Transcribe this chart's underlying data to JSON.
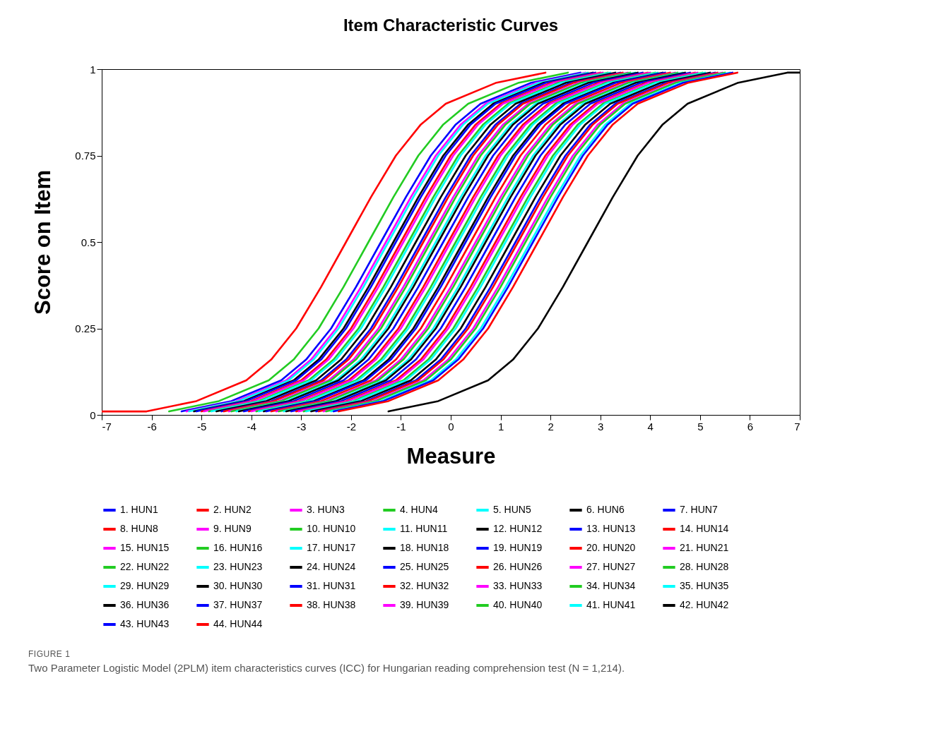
{
  "chart_data": {
    "type": "line",
    "title": "Item Characteristic Curves",
    "xlabel": "Measure",
    "ylabel": "Score on Item",
    "xlim": [
      -7,
      7
    ],
    "xticks": [
      -7,
      -6,
      -5,
      -4,
      -3,
      -2,
      -1,
      0,
      1,
      2,
      3,
      4,
      5,
      6,
      7
    ],
    "ylim": [
      0,
      1
    ],
    "yticks": [
      0,
      0.25,
      0.5,
      0.75,
      1
    ],
    "grid": false,
    "legend": "bottom",
    "marker": "none",
    "line_style": "solid",
    "annotations": [
      "FIGURE 1",
      "Two Parameter Logistic Model (2PLM) item characteristics curves (ICC) for Hungarian reading comprehension test (N = 1,214)."
    ],
    "series": [
      {
        "name": "1. HUN1",
        "color": "#0000ff",
        "x": [
          -5.4,
          -4.4,
          -3.4,
          -2.9,
          -2.4,
          -1.9,
          -1.4,
          -0.9,
          -0.4,
          0.1,
          0.6,
          1.6,
          2.6
        ],
        "values": [
          0.01,
          0.04,
          0.1,
          0.16,
          0.25,
          0.37,
          0.5,
          0.63,
          0.75,
          0.84,
          0.9,
          0.96,
          0.99
        ]
      },
      {
        "name": "2. HUN2",
        "color": "#ff0000",
        "x": [
          -7,
          -6.1,
          -5.1,
          -4.1,
          -3.6,
          -3.1,
          -2.6,
          -2.1,
          -1.6,
          -1.1,
          -0.6,
          -0.1,
          0.9,
          1.9
        ],
        "values": [
          0.01,
          0.01,
          0.04,
          0.1,
          0.16,
          0.25,
          0.37,
          0.5,
          0.63,
          0.75,
          0.84,
          0.9,
          0.96,
          0.99
        ]
      },
      {
        "name": "3. HUN3",
        "color": "#ff00ff",
        "x": [
          -5.3,
          -4.3,
          -3.3,
          -2.8,
          -2.3,
          -1.8,
          -1.3,
          -0.8,
          -0.3,
          0.2,
          0.7,
          1.7,
          2.7
        ],
        "values": [
          0.01,
          0.04,
          0.1,
          0.16,
          0.25,
          0.37,
          0.5,
          0.63,
          0.75,
          0.84,
          0.9,
          0.96,
          0.99
        ]
      },
      {
        "name": "4. HUN4",
        "color": "#22cc22",
        "x": [
          -5.65,
          -4.65,
          -3.65,
          -3.15,
          -2.65,
          -2.15,
          -1.65,
          -1.15,
          -0.65,
          -0.15,
          0.35,
          1.35,
          2.35
        ],
        "values": [
          0.01,
          0.04,
          0.1,
          0.16,
          0.25,
          0.37,
          0.5,
          0.63,
          0.75,
          0.84,
          0.9,
          0.96,
          0.99
        ]
      },
      {
        "name": "5. HUN5",
        "color": "#00ffff",
        "x": [
          -5.25,
          -4.25,
          -3.25,
          -2.75,
          -2.25,
          -1.75,
          -1.25,
          -0.75,
          -0.25,
          0.25,
          0.75,
          1.75,
          2.75
        ],
        "values": [
          0.01,
          0.04,
          0.1,
          0.16,
          0.25,
          0.37,
          0.5,
          0.63,
          0.75,
          0.84,
          0.9,
          0.96,
          0.99
        ]
      },
      {
        "name": "6. HUN6",
        "color": "#000000",
        "x": [
          -5.15,
          -4.15,
          -3.15,
          -2.65,
          -2.15,
          -1.65,
          -1.15,
          -0.65,
          -0.15,
          0.35,
          0.85,
          1.85,
          2.85
        ],
        "values": [
          0.01,
          0.04,
          0.1,
          0.16,
          0.25,
          0.37,
          0.5,
          0.63,
          0.75,
          0.84,
          0.9,
          0.96,
          0.99
        ]
      },
      {
        "name": "7. HUN7",
        "color": "#0000ff",
        "x": [
          -5.1,
          -4.1,
          -3.1,
          -2.6,
          -2.1,
          -1.6,
          -1.1,
          -0.6,
          -0.1,
          0.4,
          0.9,
          1.9,
          2.9
        ],
        "values": [
          0.01,
          0.04,
          0.1,
          0.16,
          0.25,
          0.37,
          0.5,
          0.63,
          0.75,
          0.84,
          0.9,
          0.96,
          0.99
        ]
      },
      {
        "name": "8. HUN8",
        "color": "#ff0000",
        "x": [
          -5,
          -4,
          -3,
          -2.5,
          -2,
          -1.5,
          -1,
          -0.5,
          0,
          0.5,
          1,
          2,
          3
        ],
        "values": [
          0.01,
          0.04,
          0.1,
          0.16,
          0.25,
          0.37,
          0.5,
          0.63,
          0.75,
          0.84,
          0.9,
          0.96,
          0.99
        ]
      },
      {
        "name": "9. HUN9",
        "color": "#ff00ff",
        "x": [
          -4.95,
          -3.95,
          -2.95,
          -2.45,
          -1.95,
          -1.45,
          -0.95,
          -0.45,
          0.05,
          0.55,
          1.05,
          2.05,
          3.05
        ],
        "values": [
          0.01,
          0.04,
          0.1,
          0.16,
          0.25,
          0.37,
          0.5,
          0.63,
          0.75,
          0.84,
          0.9,
          0.96,
          0.99
        ]
      },
      {
        "name": "10. HUN10",
        "color": "#22cc22",
        "x": [
          -4.85,
          -3.85,
          -2.85,
          -2.35,
          -1.85,
          -1.35,
          -0.85,
          -0.35,
          0.15,
          0.65,
          1.15,
          2.15,
          3.15
        ],
        "values": [
          0.01,
          0.04,
          0.1,
          0.16,
          0.25,
          0.37,
          0.5,
          0.63,
          0.75,
          0.84,
          0.9,
          0.96,
          0.99
        ]
      },
      {
        "name": "11. HUN11",
        "color": "#00ffff",
        "x": [
          -4.8,
          -3.8,
          -2.8,
          -2.3,
          -1.8,
          -1.3,
          -0.8,
          -0.3,
          0.2,
          0.7,
          1.2,
          2.2,
          3.2
        ],
        "values": [
          0.01,
          0.04,
          0.1,
          0.16,
          0.25,
          0.37,
          0.5,
          0.63,
          0.75,
          0.84,
          0.9,
          0.96,
          0.99
        ]
      },
      {
        "name": "12. HUN12",
        "color": "#000000",
        "x": [
          -4.7,
          -3.7,
          -2.7,
          -2.2,
          -1.7,
          -1.2,
          -0.7,
          -0.2,
          0.3,
          0.8,
          1.3,
          2.3,
          3.3
        ],
        "values": [
          0.01,
          0.04,
          0.1,
          0.16,
          0.25,
          0.37,
          0.5,
          0.63,
          0.75,
          0.84,
          0.9,
          0.96,
          0.99
        ]
      },
      {
        "name": "13. HUN13",
        "color": "#0000ff",
        "x": [
          -4.6,
          -3.6,
          -2.6,
          -2.1,
          -1.6,
          -1.1,
          -0.6,
          -0.1,
          0.4,
          0.9,
          1.4,
          2.4,
          3.4
        ],
        "values": [
          0.01,
          0.04,
          0.1,
          0.16,
          0.25,
          0.37,
          0.5,
          0.63,
          0.75,
          0.84,
          0.9,
          0.96,
          0.99
        ]
      },
      {
        "name": "14. HUN14",
        "color": "#ff0000",
        "x": [
          -4.55,
          -3.55,
          -2.55,
          -2.05,
          -1.55,
          -1.05,
          -0.55,
          -0.05,
          0.45,
          0.95,
          1.45,
          2.45,
          3.45
        ],
        "values": [
          0.01,
          0.04,
          0.1,
          0.16,
          0.25,
          0.37,
          0.5,
          0.63,
          0.75,
          0.84,
          0.9,
          0.96,
          0.99
        ]
      },
      {
        "name": "15. HUN15",
        "color": "#ff00ff",
        "x": [
          -4.45,
          -3.45,
          -2.45,
          -1.95,
          -1.45,
          -0.95,
          -0.45,
          0.05,
          0.55,
          1.05,
          1.55,
          2.55,
          3.55
        ],
        "values": [
          0.01,
          0.04,
          0.1,
          0.16,
          0.25,
          0.37,
          0.5,
          0.63,
          0.75,
          0.84,
          0.9,
          0.96,
          0.99
        ]
      },
      {
        "name": "16. HUN16",
        "color": "#22cc22",
        "x": [
          -4.4,
          -3.4,
          -2.4,
          -1.9,
          -1.4,
          -0.9,
          -0.4,
          0.1,
          0.6,
          1.1,
          1.6,
          2.6,
          3.6
        ],
        "values": [
          0.01,
          0.04,
          0.1,
          0.16,
          0.25,
          0.37,
          0.5,
          0.63,
          0.75,
          0.84,
          0.9,
          0.96,
          0.99
        ]
      },
      {
        "name": "17. HUN17",
        "color": "#00ffff",
        "x": [
          -4.3,
          -3.3,
          -2.3,
          -1.8,
          -1.3,
          -0.8,
          -0.3,
          0.2,
          0.7,
          1.2,
          1.7,
          2.7,
          3.7
        ],
        "values": [
          0.01,
          0.04,
          0.1,
          0.16,
          0.25,
          0.37,
          0.5,
          0.63,
          0.75,
          0.84,
          0.9,
          0.96,
          0.99
        ]
      },
      {
        "name": "18. HUN18",
        "color": "#000000",
        "x": [
          -4.25,
          -3.25,
          -2.25,
          -1.75,
          -1.25,
          -0.75,
          -0.25,
          0.25,
          0.75,
          1.25,
          1.75,
          2.75,
          3.75
        ],
        "values": [
          0.01,
          0.04,
          0.1,
          0.16,
          0.25,
          0.37,
          0.5,
          0.63,
          0.75,
          0.84,
          0.9,
          0.96,
          0.99
        ]
      },
      {
        "name": "19. HUN19",
        "color": "#0000ff",
        "x": [
          -4.15,
          -3.15,
          -2.15,
          -1.65,
          -1.15,
          -0.65,
          -0.15,
          0.35,
          0.85,
          1.35,
          1.85,
          2.85,
          3.85
        ],
        "values": [
          0.01,
          0.04,
          0.1,
          0.16,
          0.25,
          0.37,
          0.5,
          0.63,
          0.75,
          0.84,
          0.9,
          0.96,
          0.99
        ]
      },
      {
        "name": "20. HUN20",
        "color": "#ff0000",
        "x": [
          -4.05,
          -3.05,
          -2.05,
          -1.55,
          -1.05,
          -0.55,
          -0.05,
          0.45,
          0.95,
          1.45,
          1.95,
          2.95,
          3.95
        ],
        "values": [
          0.01,
          0.04,
          0.1,
          0.16,
          0.25,
          0.37,
          0.5,
          0.63,
          0.75,
          0.84,
          0.9,
          0.96,
          0.99
        ]
      },
      {
        "name": "21. HUN21",
        "color": "#ff00ff",
        "x": [
          -4,
          -3,
          -2,
          -1.5,
          -1,
          -0.5,
          0,
          0.5,
          1,
          1.5,
          2,
          3,
          4
        ],
        "values": [
          0.01,
          0.04,
          0.1,
          0.16,
          0.25,
          0.37,
          0.5,
          0.63,
          0.75,
          0.84,
          0.9,
          0.96,
          0.99
        ]
      },
      {
        "name": "22. HUN22",
        "color": "#22cc22",
        "x": [
          -3.9,
          -2.9,
          -1.9,
          -1.4,
          -0.9,
          -0.4,
          0.1,
          0.6,
          1.1,
          1.6,
          2.1,
          3.1,
          4.1
        ],
        "values": [
          0.01,
          0.04,
          0.1,
          0.16,
          0.25,
          0.37,
          0.5,
          0.63,
          0.75,
          0.84,
          0.9,
          0.96,
          0.99
        ]
      },
      {
        "name": "23. HUN23",
        "color": "#00ffff",
        "x": [
          -3.85,
          -2.85,
          -1.85,
          -1.35,
          -0.85,
          -0.35,
          0.15,
          0.65,
          1.15,
          1.65,
          2.15,
          3.15,
          4.15
        ],
        "values": [
          0.01,
          0.04,
          0.1,
          0.16,
          0.25,
          0.37,
          0.5,
          0.63,
          0.75,
          0.84,
          0.9,
          0.96,
          0.99
        ]
      },
      {
        "name": "24. HUN24",
        "color": "#000000",
        "x": [
          -3.75,
          -2.75,
          -1.75,
          -1.25,
          -0.75,
          -0.25,
          0.25,
          0.75,
          1.25,
          1.75,
          2.25,
          3.25,
          4.25
        ],
        "values": [
          0.01,
          0.04,
          0.1,
          0.16,
          0.25,
          0.37,
          0.5,
          0.63,
          0.75,
          0.84,
          0.9,
          0.96,
          0.99
        ]
      },
      {
        "name": "25. HUN25",
        "color": "#0000ff",
        "x": [
          -3.7,
          -2.7,
          -1.7,
          -1.2,
          -0.7,
          -0.2,
          0.3,
          0.8,
          1.3,
          1.8,
          2.3,
          3.3,
          4.3
        ],
        "values": [
          0.01,
          0.04,
          0.1,
          0.16,
          0.25,
          0.37,
          0.5,
          0.63,
          0.75,
          0.84,
          0.9,
          0.96,
          0.99
        ]
      },
      {
        "name": "26. HUN26",
        "color": "#ff0000",
        "x": [
          -3.6,
          -2.6,
          -1.6,
          -1.1,
          -0.6,
          -0.1,
          0.4,
          0.9,
          1.4,
          1.9,
          2.4,
          3.4,
          4.4
        ],
        "values": [
          0.01,
          0.04,
          0.1,
          0.16,
          0.25,
          0.37,
          0.5,
          0.63,
          0.75,
          0.84,
          0.9,
          0.96,
          0.99
        ]
      },
      {
        "name": "27. HUN27",
        "color": "#ff00ff",
        "x": [
          -3.5,
          -2.5,
          -1.5,
          -1,
          -0.5,
          0,
          0.5,
          1,
          1.5,
          2,
          2.5,
          3.5,
          4.5
        ],
        "values": [
          0.01,
          0.04,
          0.1,
          0.16,
          0.25,
          0.37,
          0.5,
          0.63,
          0.75,
          0.84,
          0.9,
          0.96,
          0.99
        ]
      },
      {
        "name": "28. HUN28",
        "color": "#22cc22",
        "x": [
          -3.45,
          -2.45,
          -1.45,
          -0.95,
          -0.45,
          0.05,
          0.55,
          1.05,
          1.55,
          2.05,
          2.55,
          3.55,
          4.55
        ],
        "values": [
          0.01,
          0.04,
          0.1,
          0.16,
          0.25,
          0.37,
          0.5,
          0.63,
          0.75,
          0.84,
          0.9,
          0.96,
          0.99
        ]
      },
      {
        "name": "29. HUN29",
        "color": "#00ffff",
        "x": [
          -3.35,
          -2.35,
          -1.35,
          -0.85,
          -0.35,
          0.15,
          0.65,
          1.15,
          1.65,
          2.15,
          2.65,
          3.65,
          4.65
        ],
        "values": [
          0.01,
          0.04,
          0.1,
          0.16,
          0.25,
          0.37,
          0.5,
          0.63,
          0.75,
          0.84,
          0.9,
          0.96,
          0.99
        ]
      },
      {
        "name": "30. HUN30",
        "color": "#000000",
        "x": [
          -3.3,
          -2.3,
          -1.3,
          -0.8,
          -0.3,
          0.2,
          0.7,
          1.2,
          1.7,
          2.2,
          2.7,
          3.7,
          4.7
        ],
        "values": [
          0.01,
          0.04,
          0.1,
          0.16,
          0.25,
          0.37,
          0.5,
          0.63,
          0.75,
          0.84,
          0.9,
          0.96,
          0.99
        ]
      },
      {
        "name": "31. HUN31",
        "color": "#0000ff",
        "x": [
          -3.2,
          -2.2,
          -1.2,
          -0.7,
          -0.2,
          0.3,
          0.8,
          1.3,
          1.8,
          2.3,
          2.8,
          3.8,
          4.8
        ],
        "values": [
          0.01,
          0.04,
          0.1,
          0.16,
          0.25,
          0.37,
          0.5,
          0.63,
          0.75,
          0.84,
          0.9,
          0.96,
          0.99
        ]
      },
      {
        "name": "32. HUN32",
        "color": "#ff0000",
        "x": [
          -3.1,
          -2.1,
          -1.1,
          -0.6,
          -0.1,
          0.4,
          0.9,
          1.4,
          1.9,
          2.4,
          2.9,
          3.9,
          4.9
        ],
        "values": [
          0.01,
          0.04,
          0.1,
          0.16,
          0.25,
          0.37,
          0.5,
          0.63,
          0.75,
          0.84,
          0.9,
          0.96,
          0.99
        ]
      },
      {
        "name": "33. HUN33",
        "color": "#ff00ff",
        "x": [
          -3.05,
          -2.05,
          -1.05,
          -0.55,
          -0.05,
          0.45,
          0.95,
          1.45,
          1.95,
          2.45,
          2.95,
          3.95,
          4.95
        ],
        "values": [
          0.01,
          0.04,
          0.1,
          0.16,
          0.25,
          0.37,
          0.5,
          0.63,
          0.75,
          0.84,
          0.9,
          0.96,
          0.99
        ]
      },
      {
        "name": "34. HUN34",
        "color": "#22cc22",
        "x": [
          -2.95,
          -1.95,
          -0.95,
          -0.45,
          0.05,
          0.55,
          1.05,
          1.55,
          2.05,
          2.55,
          3.05,
          4.05,
          5.05
        ],
        "values": [
          0.01,
          0.04,
          0.1,
          0.16,
          0.25,
          0.37,
          0.5,
          0.63,
          0.75,
          0.84,
          0.9,
          0.96,
          0.99
        ]
      },
      {
        "name": "35. HUN35",
        "color": "#00ffff",
        "x": [
          -2.9,
          -1.9,
          -0.9,
          -0.4,
          0.1,
          0.6,
          1.1,
          1.6,
          2.1,
          2.6,
          3.1,
          4.1,
          5.1
        ],
        "values": [
          0.01,
          0.04,
          0.1,
          0.16,
          0.25,
          0.37,
          0.5,
          0.63,
          0.75,
          0.84,
          0.9,
          0.96,
          0.99
        ]
      },
      {
        "name": "36. HUN36",
        "color": "#000000",
        "x": [
          -2.8,
          -1.8,
          -0.8,
          -0.3,
          0.2,
          0.7,
          1.2,
          1.7,
          2.2,
          2.7,
          3.2,
          4.2,
          5.2
        ],
        "values": [
          0.01,
          0.04,
          0.1,
          0.16,
          0.25,
          0.37,
          0.5,
          0.63,
          0.75,
          0.84,
          0.9,
          0.96,
          0.99
        ]
      },
      {
        "name": "37. HUN37",
        "color": "#0000ff",
        "x": [
          -2.7,
          -1.7,
          -0.7,
          -0.2,
          0.3,
          0.8,
          1.3,
          1.8,
          2.3,
          2.8,
          3.3,
          4.3,
          5.3
        ],
        "values": [
          0.01,
          0.04,
          0.1,
          0.16,
          0.25,
          0.37,
          0.5,
          0.63,
          0.75,
          0.84,
          0.9,
          0.96,
          0.99
        ]
      },
      {
        "name": "38. HUN38",
        "color": "#ff0000",
        "x": [
          -2.65,
          -1.65,
          -0.65,
          -0.15,
          0.35,
          0.85,
          1.35,
          1.85,
          2.35,
          2.85,
          3.35,
          4.35,
          5.35
        ],
        "values": [
          0.01,
          0.04,
          0.1,
          0.16,
          0.25,
          0.37,
          0.5,
          0.63,
          0.75,
          0.84,
          0.9,
          0.96,
          0.99
        ]
      },
      {
        "name": "39. HUN39",
        "color": "#ff00ff",
        "x": [
          -2.55,
          -1.55,
          -0.55,
          -0.05,
          0.45,
          0.95,
          1.45,
          1.95,
          2.45,
          2.95,
          3.45,
          4.45,
          5.45
        ],
        "values": [
          0.01,
          0.04,
          0.1,
          0.16,
          0.25,
          0.37,
          0.5,
          0.63,
          0.75,
          0.84,
          0.9,
          0.96,
          0.99
        ]
      },
      {
        "name": "40. HUN40",
        "color": "#22cc22",
        "x": [
          -2.5,
          -1.5,
          -0.5,
          0,
          0.5,
          1,
          1.5,
          2,
          2.5,
          3,
          3.5,
          4.5,
          5.5
        ],
        "values": [
          0.01,
          0.04,
          0.1,
          0.16,
          0.25,
          0.37,
          0.5,
          0.63,
          0.75,
          0.84,
          0.9,
          0.96,
          0.99
        ]
      },
      {
        "name": "41. HUN41",
        "color": "#00ffff",
        "x": [
          -2.4,
          -1.4,
          -0.4,
          0.1,
          0.6,
          1.1,
          1.6,
          2.1,
          2.6,
          3.1,
          3.6,
          4.6,
          5.6
        ],
        "values": [
          0.01,
          0.04,
          0.1,
          0.16,
          0.25,
          0.37,
          0.5,
          0.63,
          0.75,
          0.84,
          0.9,
          0.96,
          0.99
        ]
      },
      {
        "name": "42. HUN42",
        "color": "#000000",
        "x": [
          -1.25,
          -0.25,
          0.75,
          1.25,
          1.75,
          2.25,
          2.75,
          3.25,
          3.75,
          4.25,
          4.75,
          5.75,
          6.75,
          7
        ],
        "values": [
          0.01,
          0.04,
          0.1,
          0.16,
          0.25,
          0.37,
          0.5,
          0.63,
          0.75,
          0.84,
          0.9,
          0.96,
          0.99,
          0.99
        ]
      },
      {
        "name": "43. HUN43",
        "color": "#0000ff",
        "x": [
          -2.35,
          -1.35,
          -0.35,
          0.15,
          0.65,
          1.15,
          1.65,
          2.15,
          2.65,
          3.15,
          3.65,
          4.65,
          5.65
        ],
        "values": [
          0.01,
          0.04,
          0.1,
          0.16,
          0.25,
          0.37,
          0.5,
          0.63,
          0.75,
          0.84,
          0.9,
          0.96,
          0.99
        ]
      },
      {
        "name": "44. HUN44",
        "color": "#ff0000",
        "x": [
          -2.25,
          -1.25,
          -0.25,
          0.25,
          0.75,
          1.25,
          1.75,
          2.25,
          2.75,
          3.25,
          3.75,
          4.75,
          5.75
        ],
        "values": [
          0.01,
          0.04,
          0.1,
          0.16,
          0.25,
          0.37,
          0.5,
          0.63,
          0.75,
          0.84,
          0.9,
          0.96,
          0.99
        ]
      }
    ]
  }
}
